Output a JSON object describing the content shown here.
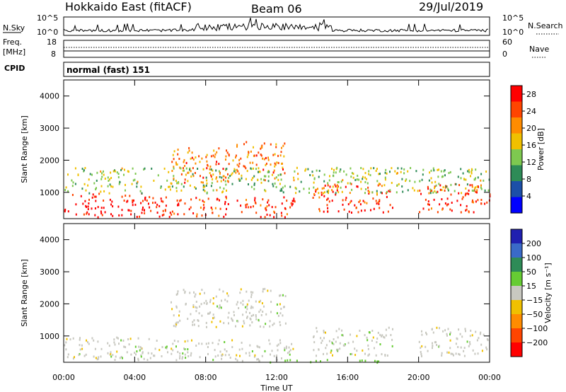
{
  "header": {
    "radar": "Hokkaido East (fitACF)",
    "beam": "Beam 06",
    "date": "29/Jul/2019"
  },
  "noise_panel": {
    "left_label": "N.Sky",
    "right_label": "N.Search",
    "left_ticks": [
      "10^5",
      "10^0"
    ],
    "right_ticks": [
      "10^5",
      "10^0"
    ]
  },
  "freq_panel": {
    "left_label_1": "Freq.",
    "left_label_2": "[MHz]",
    "left_ticks": [
      "18",
      "8"
    ],
    "right_label": "Nave",
    "right_ticks": [
      "60",
      "0"
    ]
  },
  "cpid": {
    "label": "CPID",
    "value": "normal (fast) 151"
  },
  "chart_data": [
    {
      "type": "heatmap",
      "name": "Power",
      "ylabel": "Slant Range [km]",
      "xlabel": "",
      "ylim": [
        180,
        4500
      ],
      "xlim": [
        "00:00",
        "24:00"
      ],
      "y_ticks": [
        "1000",
        "2000",
        "3000",
        "4000"
      ],
      "colorbar": {
        "label": "Power [dB]",
        "ticks": [
          "4",
          "8",
          "12",
          "16",
          "20",
          "24",
          "28"
        ],
        "range": [
          0,
          30
        ],
        "colors": [
          "#0000ff",
          "#1c4fa8",
          "#2e8b57",
          "#7ec850",
          "#f0c000",
          "#ff8c00",
          "#ff4500",
          "#ff0000"
        ]
      },
      "scatter_bands": [
        {
          "t0": 0.0,
          "t1": 5.5,
          "r0": 250,
          "r1": 1000,
          "value": 28
        },
        {
          "t0": 5.5,
          "t1": 13.0,
          "r0": 250,
          "r1": 900,
          "value": 26
        },
        {
          "t0": 6.0,
          "t1": 9.5,
          "r0": 1300,
          "r1": 2450,
          "value": 22
        },
        {
          "t0": 9.5,
          "t1": 12.5,
          "r0": 1400,
          "r1": 2600,
          "value": 22
        },
        {
          "t0": 14.0,
          "t1": 18.5,
          "r0": 400,
          "r1": 1300,
          "value": 26
        },
        {
          "t0": 20.0,
          "t1": 24.0,
          "r0": 400,
          "r1": 1300,
          "value": 26
        },
        {
          "t0": 0.0,
          "t1": 24.0,
          "r0": 1000,
          "r1": 1800,
          "value": 14
        }
      ]
    },
    {
      "type": "heatmap",
      "name": "Velocity",
      "ylabel": "Slant Range [km]",
      "xlabel": "Time UT",
      "ylim": [
        180,
        4500
      ],
      "xlim": [
        "00:00",
        "24:00"
      ],
      "y_ticks": [
        "1000",
        "2000",
        "3000",
        "4000"
      ],
      "x_ticks": [
        "00:00",
        "04:00",
        "08:00",
        "12:00",
        "16:00",
        "20:00",
        "00:00"
      ],
      "colorbar": {
        "label": "Velocity [m s⁻¹]",
        "ticks": [
          "200",
          "100",
          "50",
          "15",
          "−15",
          "−50",
          "−100",
          "−200"
        ],
        "colors": [
          "#2020b0",
          "#3a6ac8",
          "#2e8b57",
          "#66cc33",
          "#c8c8c0",
          "#f0c000",
          "#ff8c00",
          "#ff4500",
          "#ff0000"
        ]
      },
      "scatter_bands": [
        {
          "t0": 0.0,
          "t1": 5.5,
          "r0": 250,
          "r1": 1000,
          "value": 0
        },
        {
          "t0": 5.5,
          "t1": 13.0,
          "r0": 250,
          "r1": 900,
          "value": 0
        },
        {
          "t0": 6.0,
          "t1": 12.5,
          "r0": 1300,
          "r1": 2500,
          "value": 0
        },
        {
          "t0": 14.0,
          "t1": 18.5,
          "r0": 400,
          "r1": 1300,
          "value": 0
        },
        {
          "t0": 20.0,
          "t1": 24.0,
          "r0": 400,
          "r1": 1300,
          "value": 0
        },
        {
          "t0": 11.0,
          "t1": 18.0,
          "r0": 200,
          "r1": 300,
          "value": 30
        }
      ]
    }
  ]
}
